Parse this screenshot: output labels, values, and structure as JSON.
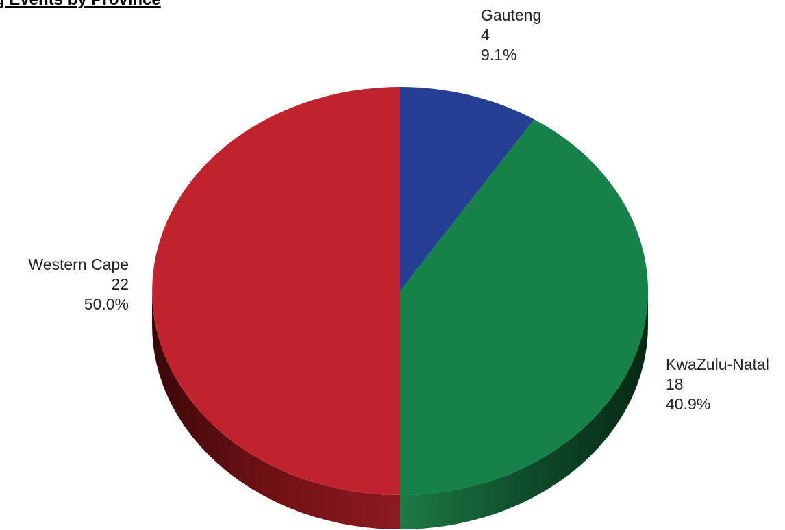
{
  "chart_data": {
    "type": "pie",
    "title": "g Events by Province",
    "slices": [
      {
        "label": "Gauteng",
        "value": 4,
        "percent": "9.1%",
        "color": "#243f93"
      },
      {
        "label": "KwaZulu-Natal",
        "value": 18,
        "percent": "40.9%",
        "color": "#16824a"
      },
      {
        "label": "Western Cape",
        "value": 22,
        "percent": "50.0%",
        "color": "#c0232d"
      }
    ],
    "start_angle": "12 o'clock",
    "direction": "clockwise",
    "style": "3d-tilted"
  }
}
